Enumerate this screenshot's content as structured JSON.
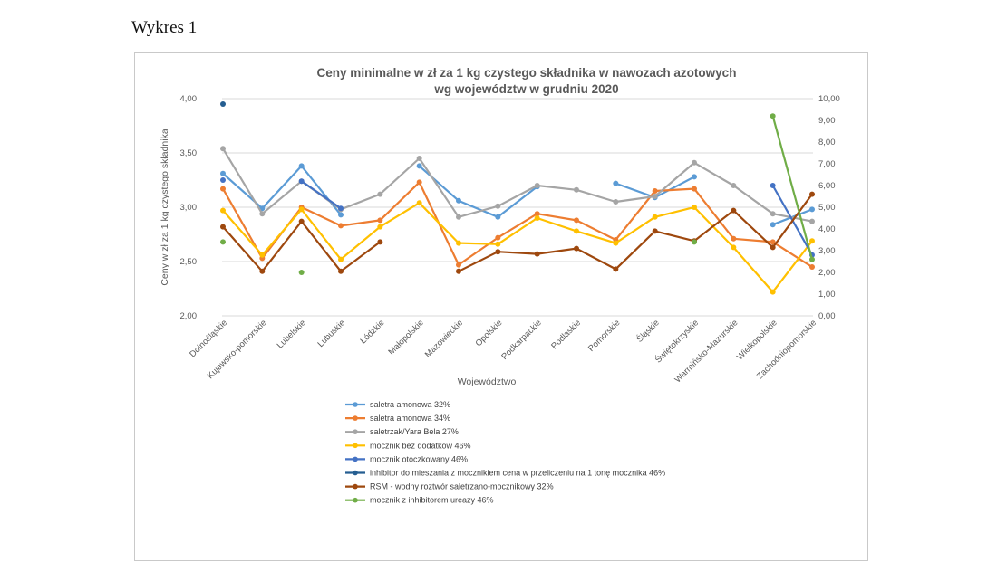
{
  "heading": "Wykres 1",
  "chart_data": {
    "type": "line",
    "title": "Ceny minimalne w zł za 1 kg czystego składnika w nawozach azotowych",
    "subtitle": "wg województw w grudniu 2020",
    "xlabel": "Województwo",
    "ylabel": "Ceny w zł za 1 kg czystego składnika",
    "ylim": [
      2.0,
      4.0
    ],
    "y2lim": [
      0.0,
      10.0
    ],
    "yticks": [
      "2,00",
      "2,50",
      "3,00",
      "3,50",
      "4,00"
    ],
    "y2ticks": [
      "0,00",
      "1,00",
      "2,00",
      "3,00",
      "4,00",
      "5,00",
      "6,00",
      "7,00",
      "8,00",
      "9,00",
      "10,00"
    ],
    "grid": true,
    "legend_position": "bottom",
    "categories": [
      "Dolnośląskie",
      "Kujawsko-pomorskie",
      "Lubelskie",
      "Lubuskie",
      "Łódzkie",
      "Małopolskie",
      "Mazowieckie",
      "Opolskie",
      "Podkarpackie",
      "Podlaskie",
      "Pomorskie",
      "Śląskie",
      "Świętokrzyskie",
      "Warmińsko-Mazurskie",
      "Wielkopolskie",
      "Zachodniopomorskie"
    ],
    "series": [
      {
        "name": "saletra amonowa 32%",
        "color": "#5b9bd5",
        "axis": "left",
        "values": [
          3.31,
          2.99,
          3.38,
          2.93,
          null,
          3.38,
          3.06,
          2.91,
          3.19,
          null,
          3.22,
          3.09,
          3.28,
          null,
          2.84,
          2.98
        ]
      },
      {
        "name": "saletra amonowa 34%",
        "color": "#ed7d31",
        "axis": "left",
        "values": [
          3.17,
          2.53,
          3.0,
          2.83,
          2.88,
          3.23,
          2.47,
          2.72,
          2.94,
          2.88,
          2.7,
          3.15,
          3.17,
          2.71,
          2.68,
          2.45
        ]
      },
      {
        "name": "saletrzak/Yara Bela 27%",
        "color": "#a5a5a5",
        "axis": "left",
        "values": [
          3.54,
          2.94,
          3.24,
          2.98,
          3.12,
          3.45,
          2.91,
          3.01,
          3.2,
          3.16,
          3.05,
          3.1,
          3.41,
          3.2,
          2.94,
          2.87
        ]
      },
      {
        "name": "mocznik bez dodatków 46%",
        "color": "#ffc000",
        "axis": "left",
        "values": [
          2.97,
          2.56,
          2.98,
          2.52,
          2.82,
          3.04,
          2.67,
          2.66,
          2.9,
          2.78,
          2.67,
          2.91,
          3.0,
          2.63,
          2.22,
          2.69
        ]
      },
      {
        "name": "mocznik otoczkowany 46%",
        "color": "#4472c4",
        "axis": "left",
        "values": [
          3.25,
          null,
          3.24,
          2.99,
          null,
          null,
          null,
          null,
          null,
          null,
          null,
          null,
          null,
          null,
          3.2,
          2.56
        ]
      },
      {
        "name": "inhibitor do mieszania z mocznikiem cena  w przeliczeniu na 1 tonę mocznika  46%",
        "color": "#255e91",
        "axis": "left",
        "values": [
          3.95,
          null,
          null,
          null,
          null,
          null,
          null,
          null,
          null,
          null,
          null,
          null,
          null,
          null,
          null,
          null
        ]
      },
      {
        "name": "RSM - wodny roztwór saletrzano-mocznikowy 32%",
        "color": "#9e480e",
        "axis": "left",
        "values": [
          2.82,
          2.41,
          2.87,
          2.41,
          2.68,
          null,
          2.41,
          2.59,
          2.57,
          2.62,
          2.43,
          2.78,
          2.69,
          2.97,
          2.63,
          3.12
        ]
      },
      {
        "name": "mocznik z inhibitorem ureazy 46%",
        "color": "#70ad47",
        "axis": "right",
        "values": [
          3.4,
          null,
          2.0,
          null,
          null,
          null,
          null,
          null,
          null,
          null,
          null,
          null,
          3.4,
          null,
          9.2,
          2.6
        ]
      }
    ]
  }
}
